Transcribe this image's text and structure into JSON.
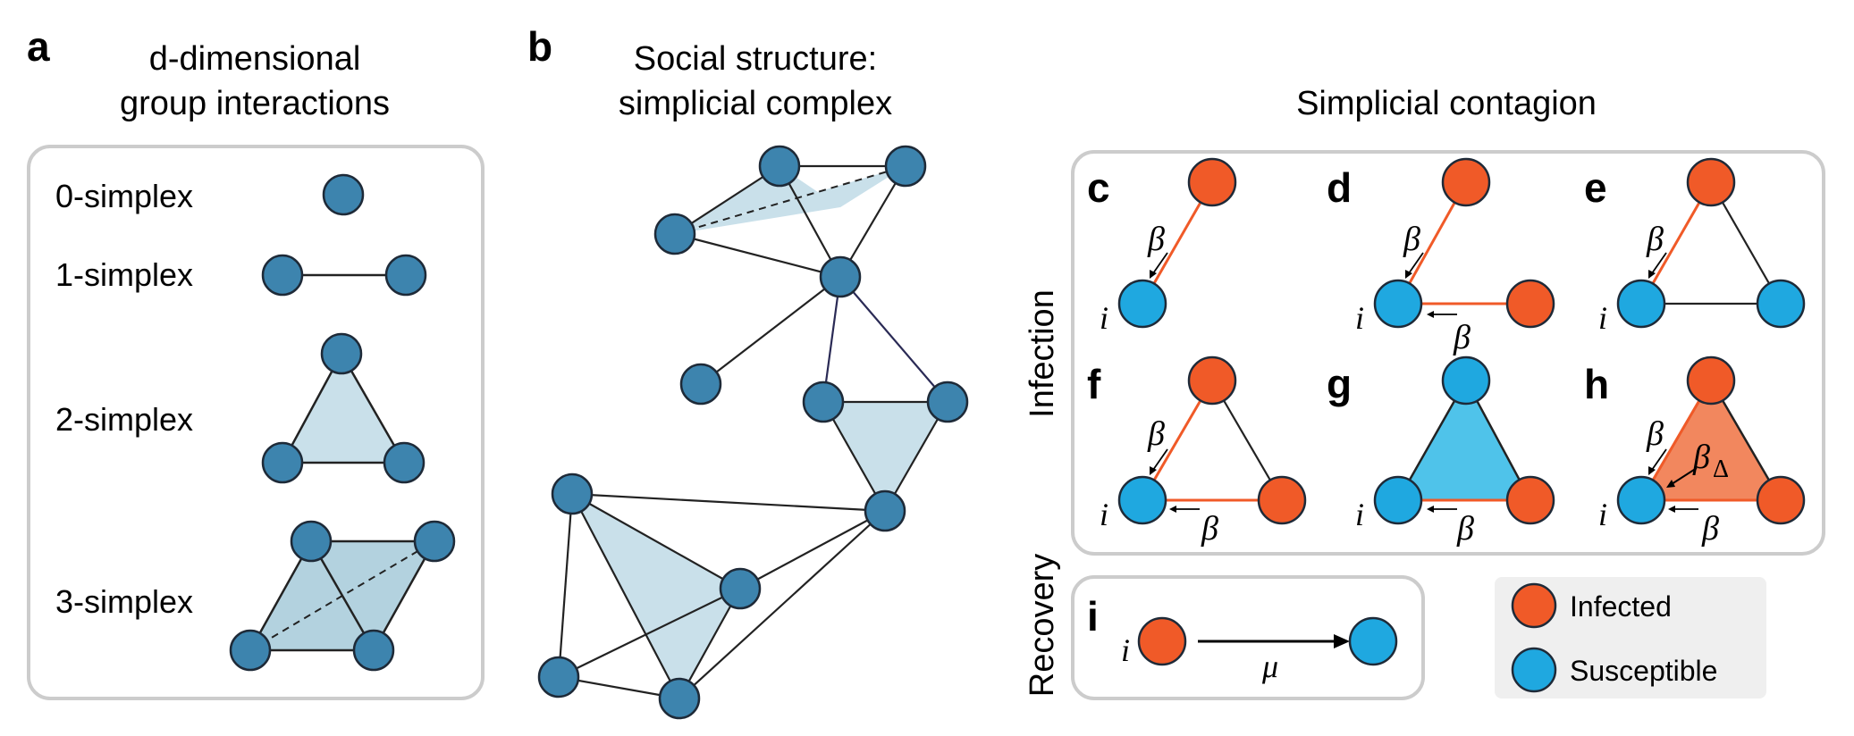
{
  "panels": {
    "a": {
      "letter": "a",
      "title_line1": "d-dimensional",
      "title_line2": "group interactions",
      "simplex_labels": [
        "0-simplex",
        "1-simplex",
        "2-simplex",
        "3-simplex"
      ]
    },
    "b": {
      "letter": "b",
      "title_line1": "Social structure:",
      "title_line2": "simplicial complex"
    },
    "contagion": {
      "title": "Simplicial contagion",
      "infection_label": "Infection",
      "recovery_label": "Recovery",
      "letters": [
        "c",
        "d",
        "e",
        "f",
        "g",
        "h",
        "i"
      ],
      "node_label": "i",
      "beta": "β",
      "beta_delta_main": "β",
      "beta_delta_sub": "Δ",
      "mu": "μ"
    }
  },
  "legend": {
    "infected": "Infected",
    "susceptible": "Susceptible"
  },
  "colors": {
    "node_blue": "#3d84ae",
    "node_blue_stroke": "#1e2a38",
    "simplex_fill": "#c9e0ea",
    "simplex_fill_dark": "#b3d2df",
    "infected": "#f05a28",
    "susceptible": "#1fa8e0",
    "susceptible_fill": "#4fc3ea",
    "infected_fill": "#f2875e",
    "box_border": "#cccccc",
    "legend_bg": "#efefef"
  }
}
